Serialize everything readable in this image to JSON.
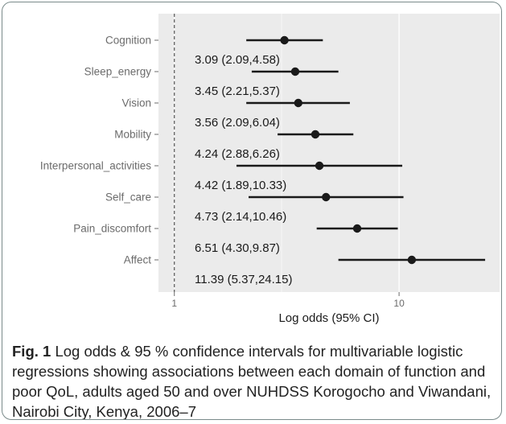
{
  "chart_data": {
    "type": "forest",
    "xscale": "log",
    "xlim": [
      0.85,
      28
    ],
    "xlabel": "Log odds (95% CI)",
    "xticks": [
      1,
      10
    ],
    "reference_line": 1,
    "grid": true,
    "rows": [
      {
        "label": "Cognition",
        "estimate": 3.09,
        "lower": 2.09,
        "upper": 4.58,
        "annotation": "3.09 (2.09,4.58)"
      },
      {
        "label": "Sleep_energy",
        "estimate": 3.45,
        "lower": 2.21,
        "upper": 5.37,
        "annotation": "3.45 (2.21,5.37)"
      },
      {
        "label": "Vision",
        "estimate": 3.56,
        "lower": 2.09,
        "upper": 6.04,
        "annotation": "3.56 (2.09,6.04)"
      },
      {
        "label": "Mobility",
        "estimate": 4.24,
        "lower": 2.88,
        "upper": 6.26,
        "annotation": "4.24 (2.88,6.26)"
      },
      {
        "label": "Interpersonal_activities",
        "estimate": 4.42,
        "lower": 1.89,
        "upper": 10.33,
        "annotation": "4.42 (1.89,10.33)"
      },
      {
        "label": "Self_care",
        "estimate": 4.73,
        "lower": 2.14,
        "upper": 10.46,
        "annotation": "4.73 (2.14,10.46)"
      },
      {
        "label": "Pain_discomfort",
        "estimate": 6.51,
        "lower": 4.3,
        "upper": 9.87,
        "annotation": "6.51 (4.30,9.87)"
      },
      {
        "label": "Affect",
        "estimate": 11.39,
        "lower": 5.37,
        "upper": 24.15,
        "annotation": "11.39 (5.37,24.15)"
      }
    ]
  },
  "caption": {
    "label": "Fig. 1",
    "text": "Log odds & 95 % confidence intervals for multivariable logistic regressions showing associations between each domain of function and poor QoL, adults aged 50 and over NUHDSS Korogocho and Viwandani, Nairobi City, Kenya, 2006–7"
  },
  "colors": {
    "panel": "#ebebeb",
    "grid": "#ffffff",
    "marks": "#1a1a1a",
    "axis_text": "#6b6b6b",
    "frame": "#7a8a8a"
  }
}
